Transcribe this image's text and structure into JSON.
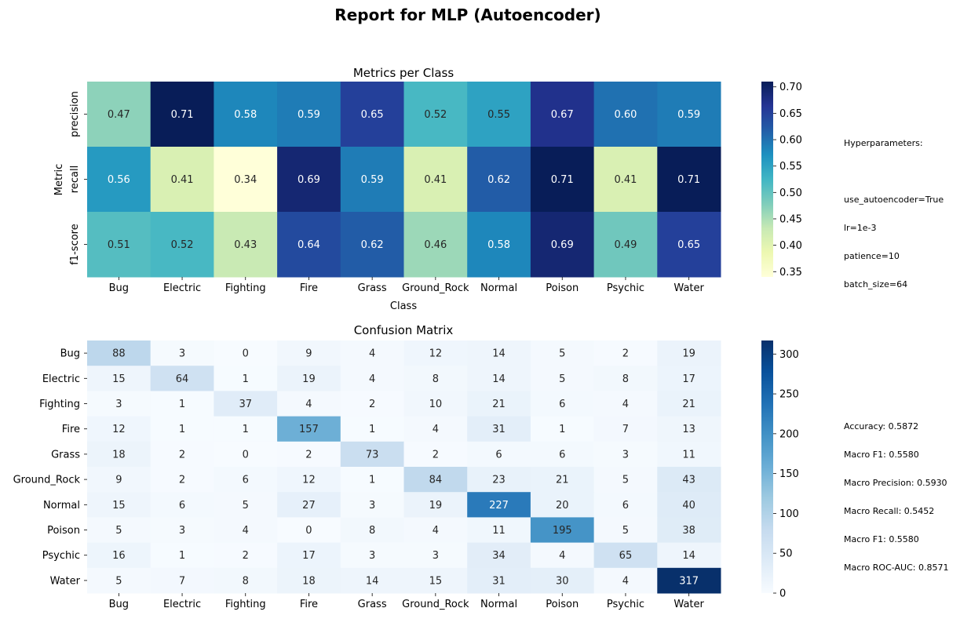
{
  "title": "Report for MLP (Autoencoder)",
  "classes": [
    "Bug",
    "Electric",
    "Fighting",
    "Fire",
    "Grass",
    "Ground_Rock",
    "Normal",
    "Poison",
    "Psychic",
    "Water"
  ],
  "colors": {
    "ylgnbu": [
      "#ffffd9",
      "#edf8b1",
      "#c7e9b4",
      "#7fcdbb",
      "#41b6c4",
      "#1d91c0",
      "#225ea8",
      "#253494",
      "#081d58"
    ],
    "blues": [
      "#f7fbff",
      "#deebf7",
      "#c6dbef",
      "#9ecae1",
      "#6baed6",
      "#4292c6",
      "#2171b5",
      "#08519c",
      "#08306b"
    ]
  },
  "chart_data": [
    {
      "type": "heatmap",
      "title": "Metrics per Class",
      "xlabel": "Class",
      "ylabel": "Metric",
      "x": [
        "Bug",
        "Electric",
        "Fighting",
        "Fire",
        "Grass",
        "Ground_Rock",
        "Normal",
        "Poison",
        "Psychic",
        "Water"
      ],
      "y": [
        "precision",
        "recall",
        "f1-score"
      ],
      "values": [
        [
          0.47,
          0.71,
          0.58,
          0.59,
          0.65,
          0.52,
          0.55,
          0.67,
          0.6,
          0.59
        ],
        [
          0.56,
          0.41,
          0.34,
          0.69,
          0.59,
          0.41,
          0.62,
          0.71,
          0.41,
          0.71
        ],
        [
          0.51,
          0.52,
          0.43,
          0.64,
          0.62,
          0.46,
          0.58,
          0.69,
          0.49,
          0.65
        ]
      ],
      "labels": [
        [
          "0.47",
          "0.71",
          "0.58",
          "0.59",
          "0.65",
          "0.52",
          "0.55",
          "0.67",
          "0.60",
          "0.59"
        ],
        [
          "0.56",
          "0.41",
          "0.34",
          "0.69",
          "0.59",
          "0.41",
          "0.62",
          "0.71",
          "0.41",
          "0.71"
        ],
        [
          "0.51",
          "0.52",
          "0.43",
          "0.64",
          "0.62",
          "0.46",
          "0.58",
          "0.69",
          "0.49",
          "0.65"
        ]
      ],
      "vmin": 0.34,
      "vmax": 0.71,
      "colormap": "ylgnbu",
      "colorbar_ticks": [
        "0.35",
        "0.40",
        "0.45",
        "0.50",
        "0.55",
        "0.60",
        "0.65",
        "0.70"
      ]
    },
    {
      "type": "heatmap",
      "title": "Confusion Matrix",
      "xlabel": "",
      "ylabel": "",
      "x": [
        "Bug",
        "Electric",
        "Fighting",
        "Fire",
        "Grass",
        "Ground_Rock",
        "Normal",
        "Poison",
        "Psychic",
        "Water"
      ],
      "y": [
        "Bug",
        "Electric",
        "Fighting",
        "Fire",
        "Grass",
        "Ground_Rock",
        "Normal",
        "Poison",
        "Psychic",
        "Water"
      ],
      "values": [
        [
          88,
          3,
          0,
          9,
          4,
          12,
          14,
          5,
          2,
          19
        ],
        [
          15,
          64,
          1,
          19,
          4,
          8,
          14,
          5,
          8,
          17
        ],
        [
          3,
          1,
          37,
          4,
          2,
          10,
          21,
          6,
          4,
          21
        ],
        [
          12,
          1,
          1,
          157,
          1,
          4,
          31,
          1,
          7,
          13
        ],
        [
          18,
          2,
          0,
          2,
          73,
          2,
          6,
          6,
          3,
          11
        ],
        [
          9,
          2,
          6,
          12,
          1,
          84,
          23,
          21,
          5,
          43
        ],
        [
          15,
          6,
          5,
          27,
          3,
          19,
          227,
          20,
          6,
          40
        ],
        [
          5,
          3,
          4,
          0,
          8,
          4,
          11,
          195,
          5,
          38
        ],
        [
          16,
          1,
          2,
          17,
          3,
          3,
          34,
          4,
          65,
          14
        ],
        [
          5,
          7,
          8,
          18,
          14,
          15,
          31,
          30,
          4,
          317
        ]
      ],
      "vmin": 0,
      "vmax": 317,
      "colormap": "blues",
      "colorbar_ticks": [
        "0",
        "50",
        "100",
        "150",
        "200",
        "250",
        "300"
      ]
    }
  ],
  "hyperparameters": [
    "Hyperparameters:",
    "",
    "use_autoencoder=True",
    "lr=1e-3",
    "patience=10",
    "batch_size=64"
  ],
  "metrics_summary": [
    "Accuracy: 0.5872",
    "Macro F1: 0.5580",
    "Macro Precision: 0.5930",
    "Macro Recall: 0.5452",
    "Macro F1: 0.5580",
    "Macro ROC-AUC: 0.8571"
  ]
}
